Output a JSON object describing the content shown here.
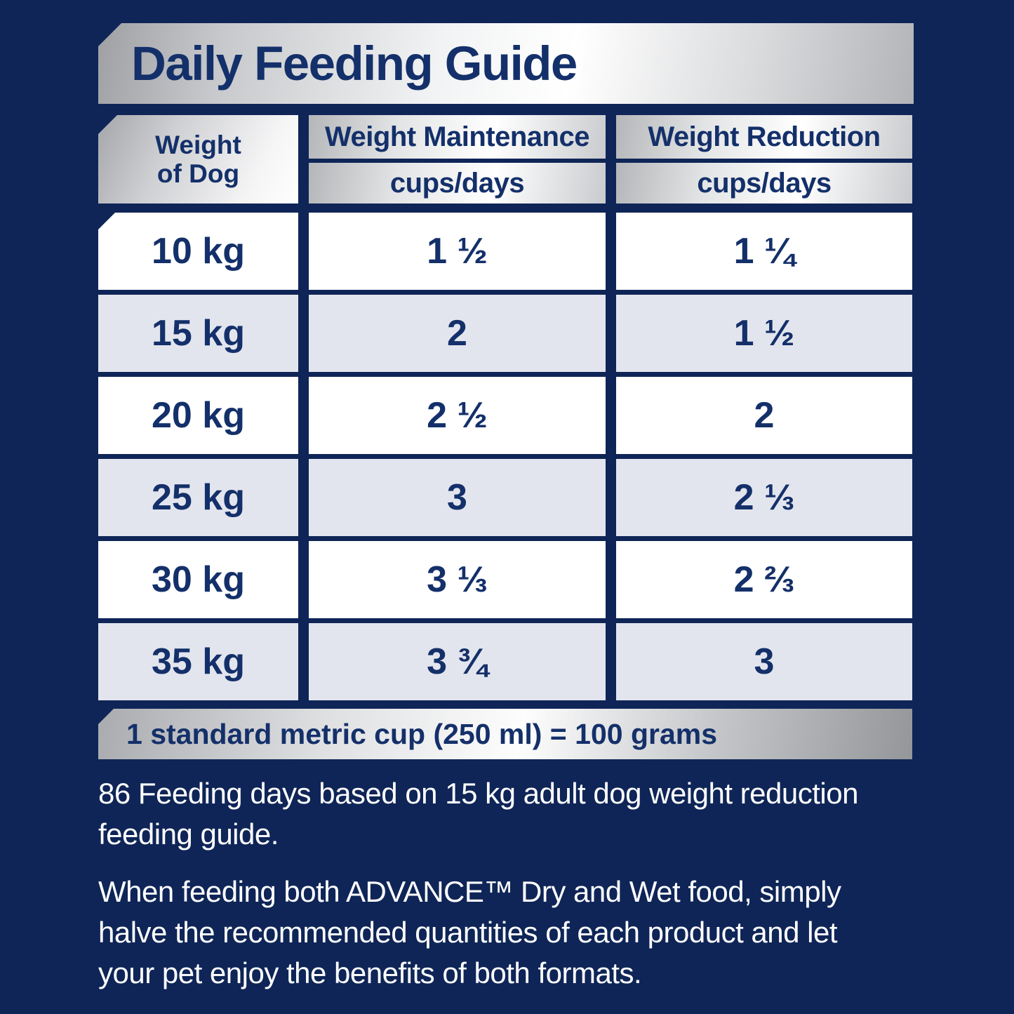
{
  "colors": {
    "navy_bg": "#0F2557",
    "text_navy": "#14306A",
    "row_white": "#FFFFFF",
    "row_tint": "#E3E5EE"
  },
  "title": "Daily Feeding Guide",
  "table": {
    "header": {
      "weight_col": "Weight\nof Dog",
      "maintenance_title": "Weight Maintenance",
      "maintenance_unit": "cups/days",
      "reduction_title": "Weight Reduction",
      "reduction_unit": "cups/days"
    },
    "rows": [
      {
        "weight": "10 kg",
        "maintenance": "1 ½",
        "reduction": "1 ¼"
      },
      {
        "weight": "15 kg",
        "maintenance": "2",
        "reduction": "1 ½"
      },
      {
        "weight": "20 kg",
        "maintenance": "2 ½",
        "reduction": "2"
      },
      {
        "weight": "25 kg",
        "maintenance": "3",
        "reduction": "2 ⅓"
      },
      {
        "weight": "30 kg",
        "maintenance": "3 ⅓",
        "reduction": "2 ⅔"
      },
      {
        "weight": "35 kg",
        "maintenance": "3 ¾",
        "reduction": "3"
      }
    ]
  },
  "cup_note": "1 standard metric cup (250 ml) = 100 grams",
  "notes": {
    "feeding_days": "86 Feeding days based on 15 kg adult dog weight reduction\nfeeding guide.",
    "mixed_feeding": "When feeding both ADVANCE™ Dry and Wet food, simply\nhalve the recommended quantities of each product and let\nyour pet enjoy the benefits of both formats."
  }
}
